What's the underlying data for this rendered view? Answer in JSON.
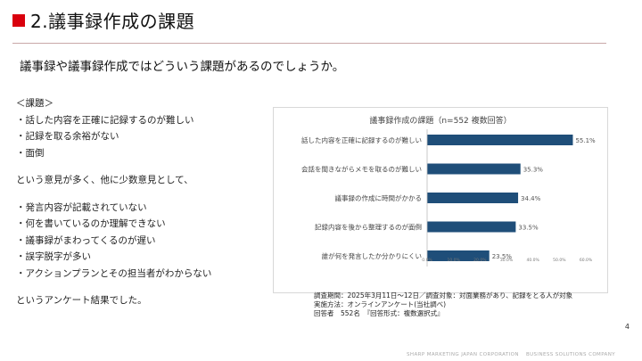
{
  "slide": {
    "title": "2.議事録作成の課題",
    "lead": "議事録や議事録作成ではどういう課題があるのでしょうか。",
    "page_number": "4",
    "footer": "SHARP MARKETING JAPAN CORPORATION　 BUSINESS SOLUTIONS COMPANY",
    "accent_color": "#d9000d"
  },
  "issues": {
    "heading": "＜課題＞",
    "main_items": [
      "・話した内容を正確に記録するのが難しい",
      "・記録を取る余裕がない",
      "・面倒"
    ],
    "bridge": "という意見が多く、他に少数意見として、",
    "minor_items": [
      "・発言内容が記載されていない",
      "・何を書いているのか理解できない",
      "・議事録がまわってくるのが遅い",
      "・誤字脱字が多い",
      "・アクションプランとその担当者がわからない"
    ],
    "conclusion": "というアンケート結果でした。"
  },
  "chart_data": {
    "type": "bar",
    "orientation": "horizontal",
    "title": "議事録作成の課題（n=552 複数回答）",
    "categories": [
      "話した内容を正確に記録するのが難しい",
      "会話を聞きながらメモを取るのが難しい",
      "議事録の作成に時間がかかる",
      "記録内容を後から整理するのが面倒",
      "誰が何を発言したか分かりにくい"
    ],
    "values": [
      55.1,
      35.3,
      34.4,
      33.5,
      23.5
    ],
    "value_labels": [
      "55.1%",
      "35.3%",
      "34.4%",
      "33.5%",
      "23.5%"
    ],
    "xlim": [
      0,
      60
    ],
    "x_ticks": [
      "0.0%",
      "10.0%",
      "20.0%",
      "30.0%",
      "40.0%",
      "50.0%",
      "60.0%"
    ],
    "bar_color": "#1f4e79",
    "grid": false
  },
  "notes": {
    "line1": "調査期間：2025年3月11日～12日／調査対象：対面業務があり、記録をとる人が対象",
    "line2": "実施方法：オンラインアンケート(当社調べ)",
    "line3": "回答者　552名　『回答形式：複数選択式』"
  }
}
